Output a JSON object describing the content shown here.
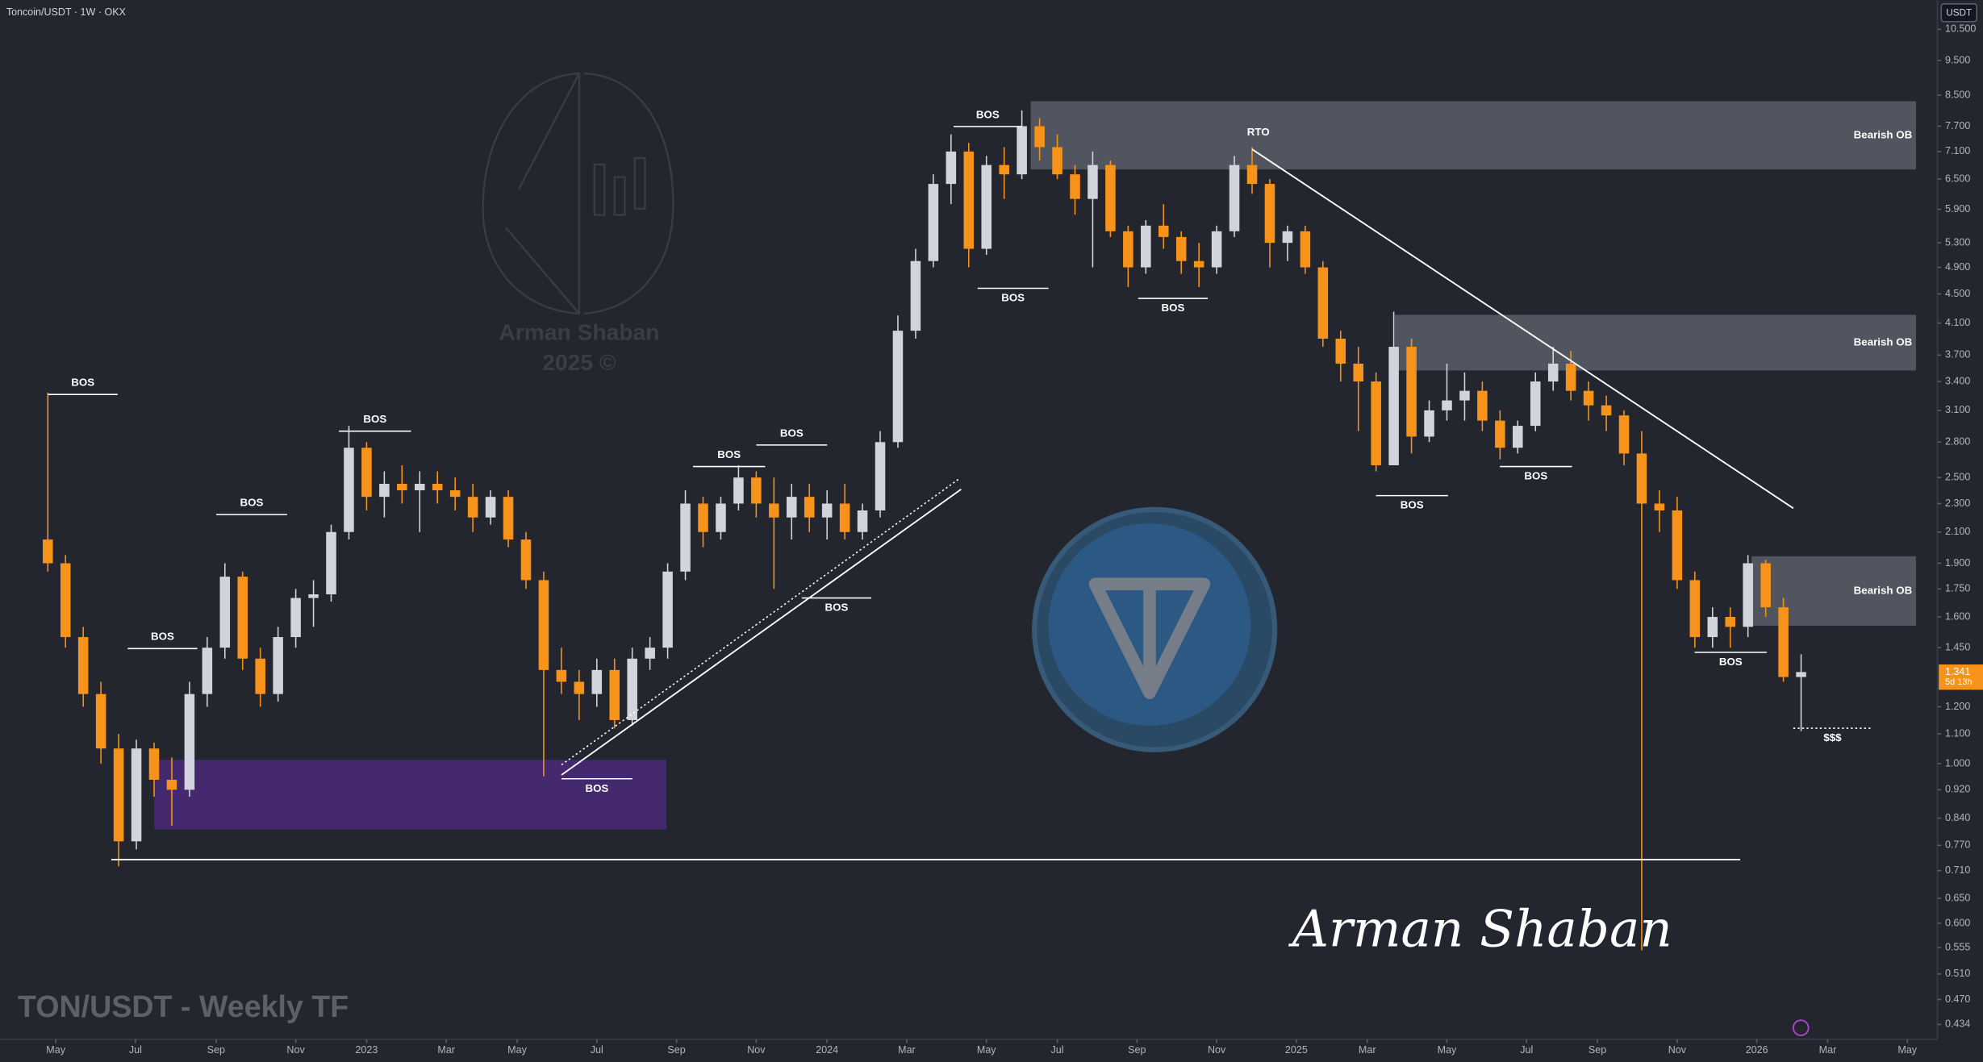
{
  "chart_data": {
    "type": "candlestick",
    "header": "Toncoin/USDT · 1W · OKX",
    "currency": "USDT",
    "footer_title": "TON/USDT - Weekly TF",
    "watermark": [
      "Arman Shaban",
      "2025 ©"
    ],
    "signature": "Arman Shaban",
    "up_color": "#d1d4dc",
    "down_color": "#f7931a",
    "log_scale": true,
    "grid": false,
    "last_price": 1.341,
    "countdown": "5d 13h",
    "xlim": [
      -5.4,
      213.4
    ],
    "xticks": [
      {
        "value": 0.9,
        "label": "May"
      },
      {
        "value": 9.9,
        "label": "Jul"
      },
      {
        "value": 19,
        "label": "Sep"
      },
      {
        "value": 28,
        "label": "Nov"
      },
      {
        "value": 36,
        "label": "2023"
      },
      {
        "value": 45,
        "label": "Mar"
      },
      {
        "value": 53,
        "label": "May"
      },
      {
        "value": 62,
        "label": "Jul"
      },
      {
        "value": 71,
        "label": "Sep"
      },
      {
        "value": 80,
        "label": "Nov"
      },
      {
        "value": 88,
        "label": "2024"
      },
      {
        "value": 97,
        "label": "Mar"
      },
      {
        "value": 106,
        "label": "May"
      },
      {
        "value": 114,
        "label": "Jul"
      },
      {
        "value": 123,
        "label": "Sep"
      },
      {
        "value": 132,
        "label": "Nov"
      },
      {
        "value": 141,
        "label": "2025"
      },
      {
        "value": 149,
        "label": "Mar"
      },
      {
        "value": 158,
        "label": "May"
      },
      {
        "value": 167,
        "label": "Jul"
      },
      {
        "value": 175,
        "label": "Sep"
      },
      {
        "value": 184,
        "label": "Nov"
      },
      {
        "value": 193,
        "label": "2026"
      },
      {
        "value": 201,
        "label": "Mar"
      },
      {
        "value": 210,
        "label": "May"
      }
    ],
    "ylim": [
      0.414,
      11.53
    ],
    "yticks": [
      {
        "value": 10.5,
        "label": "10.500"
      },
      {
        "value": 9.5,
        "label": "9.500"
      },
      {
        "value": 8.5,
        "label": "8.500"
      },
      {
        "value": 7.7,
        "label": "7.700"
      },
      {
        "value": 7.1,
        "label": "7.100"
      },
      {
        "value": 6.5,
        "label": "6.500"
      },
      {
        "value": 5.9,
        "label": "5.900"
      },
      {
        "value": 5.3,
        "label": "5.300"
      },
      {
        "value": 4.9,
        "label": "4.900"
      },
      {
        "value": 4.5,
        "label": "4.500"
      },
      {
        "value": 4.1,
        "label": "4.100"
      },
      {
        "value": 3.7,
        "label": "3.700"
      },
      {
        "value": 3.4,
        "label": "3.400"
      },
      {
        "value": 3.1,
        "label": "3.100"
      },
      {
        "value": 2.8,
        "label": "2.800"
      },
      {
        "value": 2.5,
        "label": "2.500"
      },
      {
        "value": 2.3,
        "label": "2.300"
      },
      {
        "value": 2.1,
        "label": "2.100"
      },
      {
        "value": 1.9,
        "label": "1.900"
      },
      {
        "value": 1.75,
        "label": "1.750"
      },
      {
        "value": 1.6,
        "label": "1.600"
      },
      {
        "value": 1.45,
        "label": "1.450"
      },
      {
        "value": 1.2,
        "label": "1.200"
      },
      {
        "value": 1.1,
        "label": "1.100"
      },
      {
        "value": 1,
        "label": "1.000"
      },
      {
        "value": 0.92,
        "label": "0.920"
      },
      {
        "value": 0.84,
        "label": "0.840"
      },
      {
        "value": 0.77,
        "label": "0.770"
      },
      {
        "value": 0.71,
        "label": "0.710"
      },
      {
        "value": 0.65,
        "label": "0.650"
      },
      {
        "value": 0.6,
        "label": "0.600"
      },
      {
        "value": 0.555,
        "label": "0.555"
      },
      {
        "value": 0.51,
        "label": "0.510"
      },
      {
        "value": 0.47,
        "label": "0.470"
      },
      {
        "value": 0.434,
        "label": "0.434"
      }
    ],
    "x": [
      0,
      2,
      4,
      6,
      8,
      10,
      12,
      14,
      16,
      18,
      20,
      22,
      24,
      26,
      28,
      30,
      32,
      34,
      36,
      38,
      40,
      42,
      44,
      46,
      48,
      50,
      52,
      54,
      56,
      58,
      60,
      62,
      64,
      66,
      68,
      70,
      72,
      74,
      76,
      78,
      80,
      82,
      84,
      86,
      88,
      90,
      92,
      94,
      96,
      98,
      100,
      102,
      104,
      106,
      108,
      110,
      112,
      114,
      116,
      118,
      120,
      122,
      124,
      126,
      128,
      130,
      132,
      134,
      136,
      138,
      140,
      142,
      144,
      146,
      148,
      150,
      152,
      154,
      156,
      158,
      160,
      162,
      164,
      166,
      168,
      170,
      172,
      174,
      176,
      178,
      180,
      182,
      184,
      186,
      188,
      190,
      192,
      194,
      196,
      198
    ],
    "ohlc": [
      [
        2.05,
        3.28,
        1.85,
        1.9
      ],
      [
        1.9,
        1.95,
        1.45,
        1.5
      ],
      [
        1.5,
        1.55,
        1.2,
        1.25
      ],
      [
        1.25,
        1.3,
        1.0,
        1.05
      ],
      [
        1.05,
        1.1,
        0.72,
        0.78
      ],
      [
        0.78,
        1.08,
        0.76,
        1.05
      ],
      [
        1.05,
        1.07,
        0.9,
        0.95
      ],
      [
        0.95,
        1.02,
        0.82,
        0.92
      ],
      [
        0.92,
        1.3,
        0.9,
        1.25
      ],
      [
        1.25,
        1.5,
        1.2,
        1.45
      ],
      [
        1.45,
        1.9,
        1.4,
        1.82
      ],
      [
        1.82,
        1.85,
        1.35,
        1.4
      ],
      [
        1.4,
        1.45,
        1.2,
        1.25
      ],
      [
        1.25,
        1.55,
        1.22,
        1.5
      ],
      [
        1.5,
        1.75,
        1.45,
        1.7
      ],
      [
        1.7,
        1.8,
        1.55,
        1.72
      ],
      [
        1.72,
        2.15,
        1.68,
        2.1
      ],
      [
        2.1,
        2.95,
        2.05,
        2.75
      ],
      [
        2.75,
        2.8,
        2.25,
        2.35
      ],
      [
        2.35,
        2.55,
        2.2,
        2.45
      ],
      [
        2.45,
        2.6,
        2.3,
        2.4
      ],
      [
        2.4,
        2.55,
        2.1,
        2.45
      ],
      [
        2.45,
        2.55,
        2.3,
        2.4
      ],
      [
        2.4,
        2.5,
        2.25,
        2.35
      ],
      [
        2.35,
        2.45,
        2.1,
        2.2
      ],
      [
        2.2,
        2.4,
        2.15,
        2.35
      ],
      [
        2.35,
        2.4,
        2.0,
        2.05
      ],
      [
        2.05,
        2.1,
        1.75,
        1.8
      ],
      [
        1.8,
        1.85,
        0.96,
        1.35
      ],
      [
        1.35,
        1.45,
        1.25,
        1.3
      ],
      [
        1.3,
        1.35,
        1.15,
        1.25
      ],
      [
        1.25,
        1.4,
        1.2,
        1.35
      ],
      [
        1.35,
        1.4,
        1.12,
        1.15
      ],
      [
        1.15,
        1.45,
        1.13,
        1.4
      ],
      [
        1.4,
        1.5,
        1.35,
        1.45
      ],
      [
        1.45,
        1.9,
        1.4,
        1.85
      ],
      [
        1.85,
        2.4,
        1.8,
        2.3
      ],
      [
        2.3,
        2.35,
        2.0,
        2.1
      ],
      [
        2.1,
        2.35,
        2.05,
        2.3
      ],
      [
        2.3,
        2.6,
        2.25,
        2.5
      ],
      [
        2.5,
        2.55,
        2.2,
        2.3
      ],
      [
        2.3,
        2.5,
        1.75,
        2.2
      ],
      [
        2.2,
        2.45,
        2.05,
        2.35
      ],
      [
        2.35,
        2.45,
        2.1,
        2.2
      ],
      [
        2.2,
        2.4,
        2.05,
        2.3
      ],
      [
        2.3,
        2.45,
        2.05,
        2.1
      ],
      [
        2.1,
        2.3,
        2.05,
        2.25
      ],
      [
        2.25,
        2.9,
        2.2,
        2.8
      ],
      [
        2.8,
        4.2,
        2.75,
        4.0
      ],
      [
        4.0,
        5.2,
        3.9,
        5.0
      ],
      [
        5.0,
        6.6,
        4.9,
        6.4
      ],
      [
        6.4,
        7.5,
        6.0,
        7.1
      ],
      [
        7.1,
        7.3,
        4.9,
        5.2
      ],
      [
        5.2,
        7.0,
        5.1,
        6.8
      ],
      [
        6.8,
        7.2,
        6.1,
        6.6
      ],
      [
        6.6,
        8.1,
        6.5,
        7.7
      ],
      [
        7.7,
        7.9,
        6.9,
        7.2
      ],
      [
        7.2,
        7.5,
        6.5,
        6.6
      ],
      [
        6.6,
        6.8,
        5.8,
        6.1
      ],
      [
        6.1,
        7.1,
        4.9,
        6.8
      ],
      [
        6.8,
        6.9,
        5.4,
        5.5
      ],
      [
        5.5,
        5.6,
        4.6,
        4.9
      ],
      [
        4.9,
        5.7,
        4.8,
        5.6
      ],
      [
        5.6,
        6.0,
        5.2,
        5.4
      ],
      [
        5.4,
        5.5,
        4.8,
        5.0
      ],
      [
        5.0,
        5.3,
        4.6,
        4.9
      ],
      [
        4.9,
        5.6,
        4.8,
        5.5
      ],
      [
        5.5,
        7.0,
        5.4,
        6.8
      ],
      [
        6.8,
        7.2,
        6.2,
        6.4
      ],
      [
        6.4,
        6.5,
        4.9,
        5.3
      ],
      [
        5.3,
        5.6,
        5.0,
        5.5
      ],
      [
        5.5,
        5.6,
        4.8,
        4.9
      ],
      [
        4.9,
        5.0,
        3.8,
        3.9
      ],
      [
        3.9,
        4.0,
        3.4,
        3.6
      ],
      [
        3.6,
        3.8,
        2.9,
        3.4
      ],
      [
        3.4,
        3.5,
        2.55,
        2.6
      ],
      [
        2.6,
        4.25,
        2.6,
        3.8
      ],
      [
        3.8,
        3.9,
        2.7,
        2.85
      ],
      [
        2.85,
        3.2,
        2.8,
        3.1
      ],
      [
        3.1,
        3.6,
        3.0,
        3.2
      ],
      [
        3.2,
        3.5,
        3.0,
        3.3
      ],
      [
        3.3,
        3.4,
        2.9,
        3.0
      ],
      [
        3.0,
        3.1,
        2.65,
        2.75
      ],
      [
        2.75,
        3.0,
        2.7,
        2.95
      ],
      [
        2.95,
        3.5,
        2.9,
        3.4
      ],
      [
        3.4,
        3.8,
        3.3,
        3.6
      ],
      [
        3.6,
        3.75,
        3.2,
        3.3
      ],
      [
        3.3,
        3.4,
        3.0,
        3.15
      ],
      [
        3.15,
        3.25,
        2.9,
        3.05
      ],
      [
        3.05,
        3.1,
        2.6,
        2.7
      ],
      [
        2.7,
        2.9,
        0.55,
        2.3
      ],
      [
        2.3,
        2.4,
        2.1,
        2.25
      ],
      [
        2.25,
        2.35,
        1.75,
        1.8
      ],
      [
        1.8,
        1.85,
        1.45,
        1.5
      ],
      [
        1.5,
        1.65,
        1.45,
        1.6
      ],
      [
        1.6,
        1.65,
        1.45,
        1.55
      ],
      [
        1.55,
        1.95,
        1.5,
        1.9
      ],
      [
        1.9,
        1.92,
        1.6,
        1.65
      ],
      [
        1.65,
        1.7,
        1.3,
        1.32
      ],
      [
        1.32,
        1.42,
        1.11,
        1.341
      ]
    ],
    "annotations": {
      "bos": [
        "BOS",
        "BOS",
        "BOS",
        "BOS",
        "BOS",
        "BOS",
        "BOS",
        "BOS",
        "BOS",
        "BOS",
        "BOS",
        "BOS",
        "BOS",
        "BOS"
      ],
      "bearish_ob": [
        "Bearish OB",
        "Bearish OB",
        "Bearish OB"
      ],
      "rto": "RTO",
      "liquidity": "$$$"
    }
  }
}
